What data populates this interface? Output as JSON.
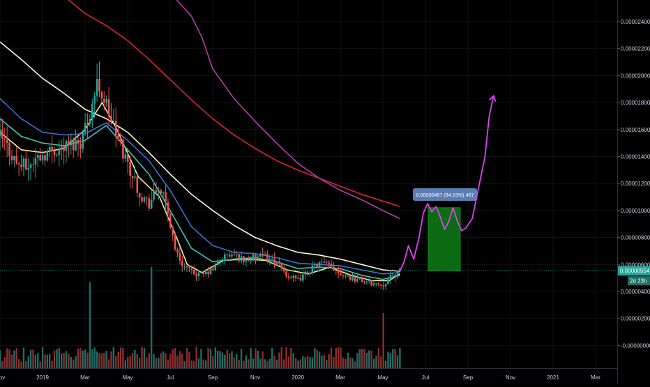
{
  "chart_data": {
    "type": "candlestick",
    "price_axis": {
      "ticks": [
        "0.00002400",
        "0.00002200",
        "0.00002000",
        "0.00001800",
        "0.00001600",
        "0.00001400",
        "0.00001200",
        "0.00001000",
        "0.00000800",
        "0.00000600",
        "0.00000400",
        "0.00000200",
        "-0.00000000"
      ],
      "tick_values": [
        2.4e-05,
        2.2e-05,
        2e-05,
        1.8e-05,
        1.6e-05,
        1.4e-05,
        1.2e-05,
        1e-05,
        8e-06,
        6e-06,
        4e-06,
        2e-06,
        0
      ],
      "ylim": [
        -7e-07,
        2.57e-05
      ]
    },
    "time_axis": {
      "ticks": [
        "Nov",
        "2019",
        "Mar",
        "May",
        "Jul",
        "Sep",
        "Nov",
        "2020",
        "Mar",
        "May",
        "Jul",
        "Sep",
        "Nov",
        "2021",
        "Mar"
      ],
      "tick_months": [
        0,
        2,
        4,
        6,
        8,
        10,
        12,
        14,
        16,
        18,
        20,
        22,
        24,
        26,
        28
      ],
      "xlim_months": [
        0,
        30.5
      ]
    },
    "current_price": {
      "label": "0.00000554",
      "value": 5.54e-06,
      "color": "#26a69a"
    },
    "countdown": {
      "label": "2d 23h"
    },
    "measure_box": {
      "label": "0.00000467 (84.19%) 467",
      "from_value": 5.54e-06,
      "to_value": 1.021e-05
    },
    "ohlc": {
      "start": [
        1.65e-05,
        1.49e-05
      ],
      "x_range": [
        0,
        18.8
      ],
      "count": 170
    },
    "price_path": [
      [
        0,
        1.55e-05
      ],
      [
        0.3,
        1.48e-05
      ],
      [
        0.8,
        1.35e-05
      ],
      [
        1.3,
        1.32e-05
      ],
      [
        1.8,
        1.4e-05
      ],
      [
        2.5,
        1.45e-05
      ],
      [
        3.2,
        1.48e-05
      ],
      [
        3.8,
        1.52e-05
      ],
      [
        4.2,
        1.72e-05
      ],
      [
        4.6,
        1.95e-05
      ],
      [
        5.0,
        1.78e-05
      ],
      [
        5.5,
        1.55e-05
      ],
      [
        6.0,
        1.35e-05
      ],
      [
        6.6,
        1.12e-05
      ],
      [
        7.0,
        1.05e-05
      ],
      [
        7.5,
        1.18e-05
      ],
      [
        7.9,
        9.8e-06
      ],
      [
        8.3,
        6.8e-06
      ],
      [
        8.6,
        6e-06
      ],
      [
        9.0,
        5.4e-06
      ],
      [
        9.5,
        5.2e-06
      ],
      [
        10.0,
        5.6e-06
      ],
      [
        10.5,
        6.6e-06
      ],
      [
        11.0,
        6.7e-06
      ],
      [
        11.5,
        6.3e-06
      ],
      [
        12.0,
        6.5e-06
      ],
      [
        12.5,
        6.6e-06
      ],
      [
        13.0,
        6.1e-06
      ],
      [
        13.5,
        5.2e-06
      ],
      [
        14.0,
        4.8e-06
      ],
      [
        14.5,
        5.5e-06
      ],
      [
        15.0,
        6.1e-06
      ],
      [
        15.5,
        5.9e-06
      ],
      [
        16.0,
        5.4e-06
      ],
      [
        16.5,
        5e-06
      ],
      [
        17.0,
        4.8e-06
      ],
      [
        17.5,
        4.6e-06
      ],
      [
        18.0,
        4.5e-06
      ],
      [
        18.3,
        5e-06
      ],
      [
        18.8,
        5.5e-06
      ]
    ],
    "volume_spikes": [
      [
        4.2,
        0.28
      ],
      [
        7.1,
        0.33
      ],
      [
        6.2,
        0.05
      ],
      [
        18.0,
        0.18
      ],
      [
        1.5,
        0.06
      ],
      [
        3.0,
        0.05
      ]
    ],
    "moving_averages": [
      {
        "color": "#ffeb99",
        "points": [
          [
            0,
            1.58e-05
          ],
          [
            1,
            1.45e-05
          ],
          [
            2,
            1.43e-05
          ],
          [
            3,
            1.46e-05
          ],
          [
            4,
            1.6e-05
          ],
          [
            4.8,
            1.8e-05
          ],
          [
            5.5,
            1.6e-05
          ],
          [
            6.5,
            1.25e-05
          ],
          [
            7.5,
            1.1e-05
          ],
          [
            8.3,
            8e-06
          ],
          [
            8.8,
            6e-06
          ],
          [
            9.5,
            5.4e-06
          ],
          [
            10.5,
            6.3e-06
          ],
          [
            11.5,
            6.4e-06
          ],
          [
            12.5,
            6.3e-06
          ],
          [
            13.5,
            5.6e-06
          ],
          [
            14.5,
            5.3e-06
          ],
          [
            15.5,
            5.8e-06
          ],
          [
            16.5,
            5.2e-06
          ],
          [
            17.5,
            4.8e-06
          ],
          [
            18.3,
            4.8e-06
          ],
          [
            18.8,
            5.3e-06
          ]
        ]
      },
      {
        "color": "#3cc8b4",
        "points": [
          [
            0,
            1.68e-05
          ],
          [
            1,
            1.55e-05
          ],
          [
            2,
            1.5e-05
          ],
          [
            3,
            1.48e-05
          ],
          [
            4,
            1.52e-05
          ],
          [
            5,
            1.63e-05
          ],
          [
            6,
            1.45e-05
          ],
          [
            7,
            1.27e-05
          ],
          [
            8,
            1e-05
          ],
          [
            9,
            7.2e-06
          ],
          [
            10,
            6.2e-06
          ],
          [
            11,
            6.4e-06
          ],
          [
            12,
            6.5e-06
          ],
          [
            13,
            6.2e-06
          ],
          [
            14,
            5.7e-06
          ],
          [
            15,
            5.8e-06
          ],
          [
            16,
            5.7e-06
          ],
          [
            17,
            5.2e-06
          ],
          [
            18,
            4.9e-06
          ],
          [
            18.8,
            5.2e-06
          ]
        ]
      },
      {
        "color": "#3d6fd1",
        "points": [
          [
            0,
            1.83e-05
          ],
          [
            1,
            1.68e-05
          ],
          [
            2,
            1.58e-05
          ],
          [
            3,
            1.56e-05
          ],
          [
            4,
            1.57e-05
          ],
          [
            5,
            1.65e-05
          ],
          [
            6,
            1.52e-05
          ],
          [
            7,
            1.37e-05
          ],
          [
            8,
            1.15e-05
          ],
          [
            9,
            8.8e-06
          ],
          [
            10,
            7.4e-06
          ],
          [
            11,
            6.9e-06
          ],
          [
            12,
            6.8e-06
          ],
          [
            13,
            6.5e-06
          ],
          [
            14,
            6.1e-06
          ],
          [
            15,
            6e-06
          ],
          [
            16,
            5.9e-06
          ],
          [
            17,
            5.6e-06
          ],
          [
            18,
            5.3e-06
          ],
          [
            18.8,
            5.4e-06
          ]
        ]
      },
      {
        "color": "#fffde0",
        "points": [
          [
            0,
            2.25e-05
          ],
          [
            1,
            2.12e-05
          ],
          [
            2,
            1.98e-05
          ],
          [
            3,
            1.87e-05
          ],
          [
            4,
            1.75e-05
          ],
          [
            5,
            1.68e-05
          ],
          [
            6,
            1.58e-05
          ],
          [
            7,
            1.43e-05
          ],
          [
            8,
            1.27e-05
          ],
          [
            9,
            1.12e-05
          ],
          [
            10,
            1e-05
          ],
          [
            11,
            8.9e-06
          ],
          [
            12,
            8e-06
          ],
          [
            13,
            7.4e-06
          ],
          [
            14,
            6.9e-06
          ],
          [
            15,
            6.7e-06
          ],
          [
            16,
            6.4e-06
          ],
          [
            17,
            6e-06
          ],
          [
            18,
            5.6e-06
          ],
          [
            18.8,
            5.5e-06
          ]
        ]
      },
      {
        "color": "#e0232b",
        "points": [
          [
            3,
            2.59e-05
          ],
          [
            4,
            2.46e-05
          ],
          [
            5,
            2.37e-05
          ],
          [
            6,
            2.26e-05
          ],
          [
            7,
            2.12e-05
          ],
          [
            8,
            1.97e-05
          ],
          [
            9,
            1.82e-05
          ],
          [
            10,
            1.68e-05
          ],
          [
            11,
            1.56e-05
          ],
          [
            12,
            1.46e-05
          ],
          [
            13,
            1.37e-05
          ],
          [
            14,
            1.3e-05
          ],
          [
            15,
            1.24e-05
          ],
          [
            16,
            1.18e-05
          ],
          [
            17,
            1.12e-05
          ],
          [
            18,
            1.07e-05
          ],
          [
            18.8,
            1.03e-05
          ]
        ]
      },
      {
        "color": "#b03fa8",
        "points": [
          [
            8.2,
            2.58e-05
          ],
          [
            9,
            2.44e-05
          ],
          [
            9.5,
            2.28e-05
          ],
          [
            10,
            2.05e-05
          ],
          [
            11,
            1.83e-05
          ],
          [
            12,
            1.66e-05
          ],
          [
            13,
            1.5e-05
          ],
          [
            14,
            1.35e-05
          ],
          [
            15,
            1.24e-05
          ],
          [
            16,
            1.15e-05
          ],
          [
            17,
            1.08e-05
          ],
          [
            18,
            1e-05
          ],
          [
            18.8,
            9.4e-06
          ]
        ]
      }
    ],
    "projection_path": [
      [
        18.8,
        5.5e-06
      ],
      [
        19.0,
        6.2e-06
      ],
      [
        19.2,
        7.4e-06
      ],
      [
        19.45,
        6.4e-06
      ],
      [
        19.7,
        8e-06
      ],
      [
        19.9,
        9.8e-06
      ],
      [
        20.1,
        1.05e-05
      ],
      [
        20.3,
        9.9e-06
      ],
      [
        20.5,
        1.03e-05
      ],
      [
        20.7,
        9.5e-06
      ],
      [
        20.9,
        8.6e-06
      ],
      [
        21.1,
        9.2e-06
      ],
      [
        21.3,
        1.02e-05
      ],
      [
        21.5,
        9.2e-06
      ],
      [
        21.7,
        8.5e-06
      ],
      [
        21.9,
        8.7e-06
      ],
      [
        22.2,
        9.4e-06
      ],
      [
        22.5,
        1.17e-05
      ],
      [
        22.8,
        1.4e-05
      ],
      [
        23.0,
        1.7e-05
      ],
      [
        23.2,
        1.85e-05
      ]
    ],
    "projection_color": "#e040fb"
  }
}
